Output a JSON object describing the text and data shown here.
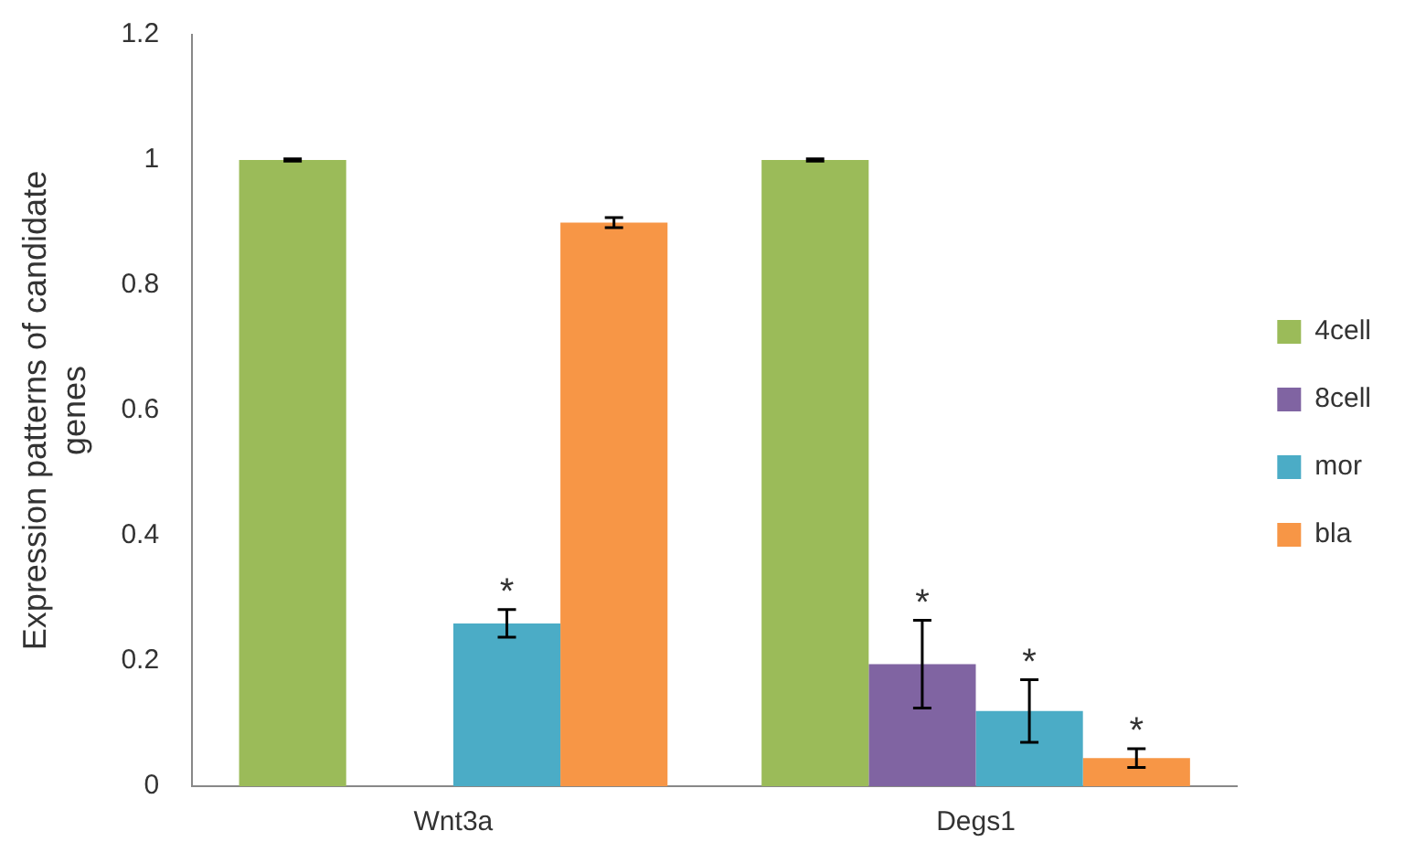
{
  "chart_data": {
    "type": "bar",
    "ylabel": "Expression patterns of candidate genes",
    "categories": [
      "Wnt3a",
      "Degs1"
    ],
    "series": [
      {
        "name": "4cell",
        "color": "#9bbb59",
        "values": [
          1,
          1
        ],
        "errors": [
          0.002,
          0.002
        ]
      },
      {
        "name": "8cell",
        "color": "#8064a2",
        "values": [
          null,
          0.195
        ],
        "errors": [
          null,
          0.07
        ],
        "value_labels": [
          null,
          "*"
        ]
      },
      {
        "name": "mor",
        "color": "#4bacc6",
        "values": [
          0.26,
          0.12
        ],
        "errors": [
          0.022,
          0.05
        ],
        "value_labels": [
          "*",
          "*"
        ]
      },
      {
        "name": "bla",
        "color": "#f79646",
        "values": [
          0.9,
          0.045
        ],
        "errors": [
          0.008,
          0.015
        ],
        "value_labels": [
          null,
          "*"
        ]
      }
    ],
    "ylim": [
      0,
      1.2
    ],
    "yticks": [
      0,
      0.2,
      0.4,
      0.6,
      0.8,
      1,
      1.2
    ],
    "grid": false,
    "legend": "right"
  }
}
